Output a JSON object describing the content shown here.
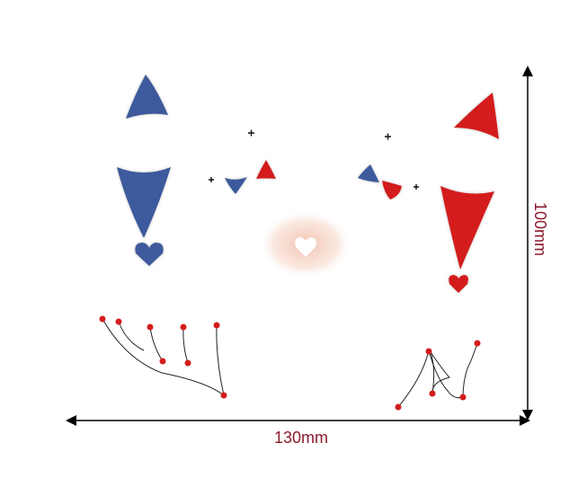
{
  "dimensions": {
    "width": "130mm",
    "height": "100mm"
  }
}
